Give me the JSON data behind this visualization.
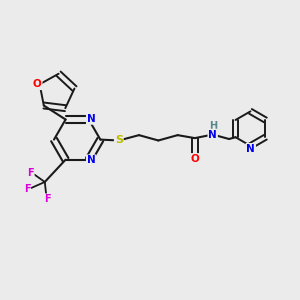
{
  "background_color": "#ebebeb",
  "bond_color": "#1a1a1a",
  "atom_colors": {
    "O": "#ff0000",
    "N": "#0000ee",
    "S": "#bbbb00",
    "F": "#dd00dd",
    "H": "#558888",
    "C": "#1a1a1a"
  },
  "figsize": [
    3.0,
    3.0
  ],
  "dpi": 100
}
